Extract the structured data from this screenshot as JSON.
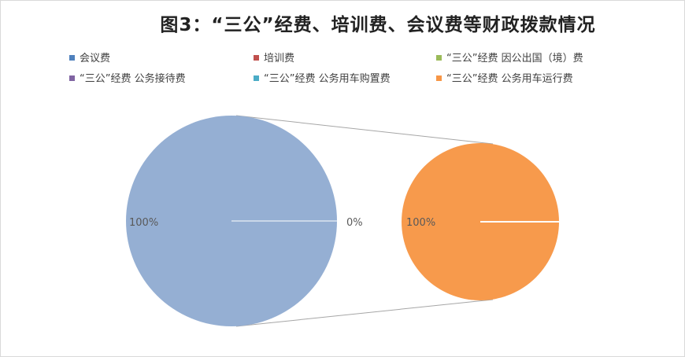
{
  "chart_data": {
    "type": "pie-of-pie",
    "title": "图3：“三公”经费、培训费、会议费等财政拨款情况",
    "legend_placement": "top",
    "series": [
      {
        "name": "会议费",
        "value_label": "100%",
        "value": 100,
        "color": "#4f81bd"
      },
      {
        "name": "培训费",
        "value": 0,
        "color": "#c0504d"
      },
      {
        "name": "“三公”经费 因公出国（境）费",
        "value": 0,
        "color": "#9bbb59"
      },
      {
        "name": "“三公”经费 公务接待费",
        "value": 0,
        "color": "#8064a2"
      },
      {
        "name": "“三公”经费 公务用车购置费",
        "value": 0,
        "color": "#4bacc6"
      },
      {
        "name": "“三公”经费 公务用车运行费",
        "value": 0,
        "color": "#f79646"
      }
    ],
    "main_pie": {
      "value_label": "100%",
      "value": 100,
      "color": "#95afd3"
    },
    "other_slice_label": "0%",
    "secondary_pie": {
      "value_label": "100%",
      "value": 100,
      "color": "#f79a4c"
    }
  }
}
